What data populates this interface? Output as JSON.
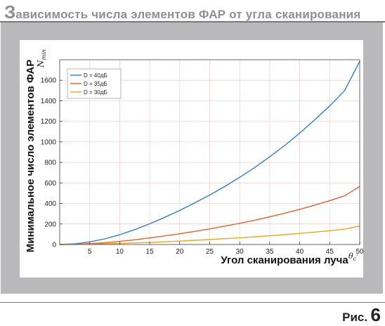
{
  "header": {
    "title_initial": "З",
    "title_rest": "ависимость числа элементов ФАР от угла сканирования"
  },
  "figure": {
    "label_word": "Рис.",
    "label_number": "6"
  },
  "colors": {
    "frame": "#b9b9bb",
    "plot_bg": "#ffffff",
    "grid": "#f2c9c9",
    "axis": "#333333"
  },
  "chart_data": {
    "type": "line",
    "title": "",
    "ylabel": "Минимальное число элементов ФАР",
    "ylabel_symbol": "N",
    "ylabel_subscript": "min",
    "xlabel": "Угол сканирования луча",
    "xlabel_symbol": "θ",
    "xlabel_subscript": "c",
    "xlabel_prime": "'",
    "xlim": [
      0,
      50
    ],
    "ylim": [
      0,
      1800
    ],
    "xticks": [
      5,
      10,
      15,
      20,
      25,
      30,
      35,
      40,
      45,
      50
    ],
    "yticks": [
      0,
      200,
      400,
      600,
      800,
      1000,
      1200,
      1400,
      1600
    ],
    "grid": true,
    "legend_position": "top-left",
    "x": [
      0,
      2.5,
      5,
      7.5,
      10,
      12.5,
      15,
      17.5,
      20,
      22.5,
      25,
      27.5,
      30,
      32.5,
      35,
      37.5,
      40,
      42.5,
      45,
      47.5,
      50
    ],
    "series": [
      {
        "name": "D = 40дБ",
        "color": "#2f7fc1",
        "values": [
          0,
          6,
          25,
          55,
          95,
          145,
          202,
          265,
          332,
          405,
          482,
          565,
          655,
          750,
          855,
          965,
          1085,
          1215,
          1350,
          1500,
          1785
        ]
      },
      {
        "name": "D = 35дБ",
        "color": "#e1622f",
        "values": [
          0,
          2,
          8,
          17,
          30,
          46,
          64,
          84,
          105,
          128,
          152,
          179,
          207,
          237,
          270,
          305,
          343,
          384,
          427,
          474,
          565
        ]
      },
      {
        "name": "D = 30дБ",
        "color": "#eba51f",
        "values": [
          0,
          1,
          3,
          6,
          10,
          15,
          20,
          27,
          33,
          41,
          48,
          57,
          66,
          75,
          85,
          96,
          108,
          121,
          135,
          150,
          180
        ]
      }
    ]
  }
}
